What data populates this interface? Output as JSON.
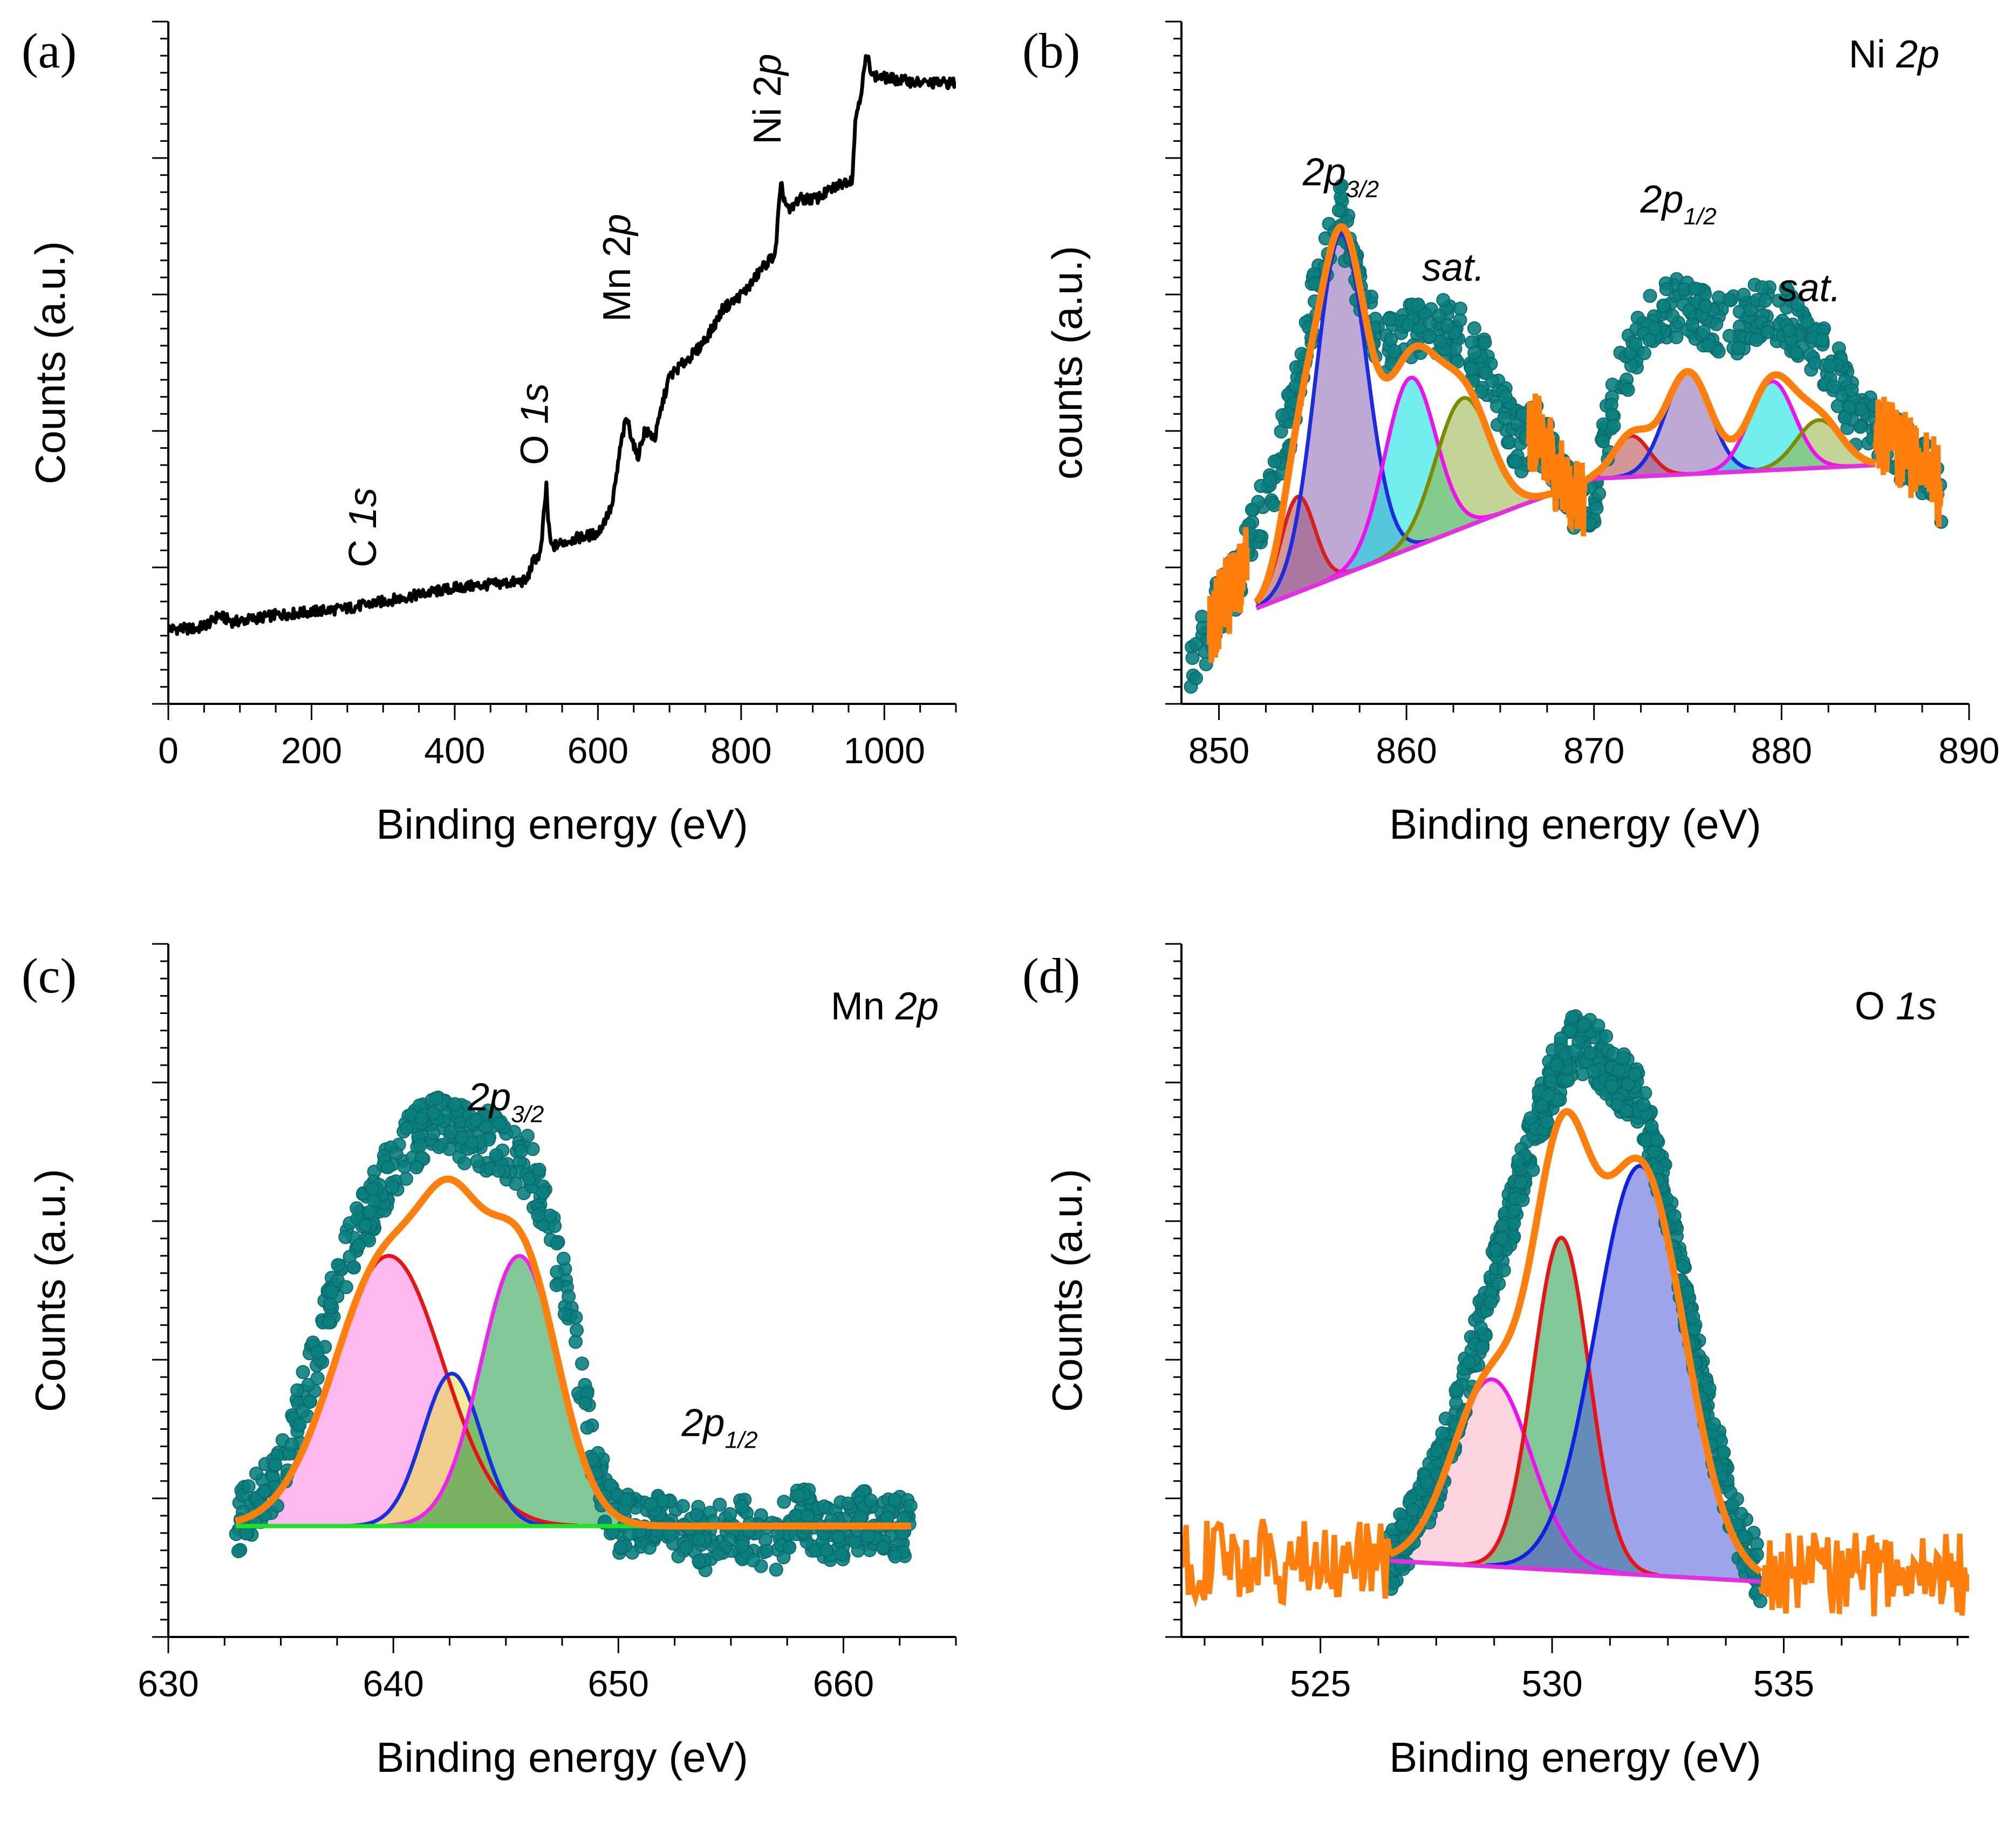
{
  "chart_data": [
    {
      "panel": "(a)",
      "type": "line",
      "title": "",
      "xlabel": "Binding energy (eV)",
      "ylabel": "Counts (a.u.)",
      "xlim": [
        0,
        1100
      ],
      "ylim": [
        0,
        100
      ],
      "xticks": [
        0,
        200,
        400,
        600,
        800,
        1000
      ],
      "xtick_labels": [
        "0",
        "200",
        "400",
        "600",
        "800",
        "1000"
      ],
      "annotations": [
        {
          "main": "C ",
          "italic": "1s",
          "x": 290,
          "y": 20,
          "rotate": true
        },
        {
          "main": "O ",
          "italic": "1s",
          "x": 530,
          "y": 35,
          "rotate": true
        },
        {
          "main": "Mn 2",
          "italic": "p",
          "x": 645,
          "y": 56,
          "rotate": true
        },
        {
          "main": "Ni 2",
          "italic": "p",
          "x": 855,
          "y": 82,
          "rotate": true
        }
      ],
      "series": [
        {
          "name": "survey",
          "color": "#000000",
          "x": [
            0,
            40,
            60,
            70,
            90,
            150,
            250,
            300,
            400,
            500,
            510,
            520,
            528,
            531,
            535,
            560,
            600,
            620,
            632,
            640,
            645,
            655,
            665,
            680,
            690,
            700,
            720,
            740,
            760,
            775,
            790,
            810,
            830,
            848,
            852,
            856,
            860,
            868,
            880,
            905,
            935,
            955,
            960,
            968,
            975,
            985,
            1050,
            1100
          ],
          "values": [
            11,
            11,
            12,
            13,
            12,
            13,
            14,
            15,
            17,
            18,
            21,
            22,
            32,
            26,
            23,
            24,
            25,
            29,
            38,
            42,
            40,
            36,
            40,
            39,
            44,
            48,
            50,
            52,
            55,
            58,
            59,
            61,
            64,
            66,
            72,
            76,
            74,
            72,
            74,
            74,
            76,
            77,
            86,
            90,
            95,
            92,
            91,
            91
          ]
        }
      ]
    },
    {
      "panel": "(b)",
      "tag": {
        "main": "Ni ",
        "italic": "2p"
      },
      "type": "line",
      "title": "",
      "xlabel": "Binding energy (eV)",
      "ylabel": "counts (a.u.)",
      "xlim": [
        848,
        890
      ],
      "ylim": [
        0,
        100
      ],
      "xticks": [
        850,
        860,
        870,
        880,
        890
      ],
      "xtick_labels": [
        "850",
        "860",
        "870",
        "880",
        "890"
      ],
      "annotations": [
        {
          "main": "2p",
          "sub": "3/2",
          "x": 856.5,
          "y": 76
        },
        {
          "main": "2p",
          "sub": "1/2",
          "x": 874.5,
          "y": 72
        },
        {
          "main": "sat.",
          "x": 862.5,
          "y": 62
        },
        {
          "main": "sat.",
          "x": 881.5,
          "y": 59
        }
      ],
      "baseline": {
        "x": [
          852,
          866,
          870,
          885
        ],
        "values": [
          14,
          29,
          33,
          35
        ]
      },
      "components": [
        {
          "name": "p1",
          "center": 854.2,
          "sigma": 0.9,
          "amplitude": 14,
          "color": "#d81d1d",
          "fill": "#b04040"
        },
        {
          "name": "p2",
          "center": 856.5,
          "sigma": 1.35,
          "amplitude": 50,
          "color": "#1a2be0",
          "fill": "#8860b0"
        },
        {
          "name": "p3",
          "center": 860.2,
          "sigma": 1.35,
          "amplitude": 25,
          "color": "#ee11ee",
          "fill": "#00e0e0"
        },
        {
          "name": "p4",
          "center": 863.0,
          "sigma": 1.45,
          "amplitude": 19,
          "color": "#7e8a00",
          "fill": "#90b040"
        },
        {
          "name": "p5",
          "center": 872.0,
          "sigma": 0.95,
          "amplitude": 6,
          "color": "#d81d1d",
          "fill": "#b04040"
        },
        {
          "name": "p6",
          "center": 875.0,
          "sigma": 1.2,
          "amplitude": 15,
          "color": "#1a2be0",
          "fill": "#8860b0"
        },
        {
          "name": "p7",
          "center": 879.5,
          "sigma": 1.2,
          "amplitude": 13,
          "color": "#ee11ee",
          "fill": "#00e0e0"
        },
        {
          "name": "p8",
          "center": 882.0,
          "sigma": 1.2,
          "amplitude": 7,
          "color": "#7e8a00",
          "fill": "#90b040"
        }
      ],
      "envelope": {
        "name": "fit",
        "color": "#ff7f0e"
      },
      "data": {
        "name": "experimental",
        "color": "#0b8080",
        "x": [
          848.5,
          849,
          850,
          851,
          852,
          853,
          854,
          855,
          856,
          856.5,
          857,
          858,
          859,
          860,
          861,
          862,
          863,
          864,
          865,
          866,
          867,
          868,
          869,
          870,
          871,
          872,
          873,
          874,
          875,
          876,
          877,
          878,
          879,
          880,
          881,
          882,
          883,
          884,
          885,
          886,
          887,
          888,
          888.7
        ],
        "values": [
          4,
          8,
          14,
          18,
          26,
          34,
          44,
          58,
          70,
          72,
          66,
          56,
          52,
          54,
          56,
          55,
          54,
          50,
          44,
          38,
          40,
          34,
          30,
          30,
          44,
          52,
          56,
          58,
          58,
          56,
          55,
          56,
          58,
          57,
          55,
          52,
          48,
          42,
          40,
          38,
          36,
          34,
          30
        ]
      },
      "noise_edges": {
        "x": [
          849.5,
          851.5,
          866.5,
          869.5,
          885,
          888.5
        ]
      }
    },
    {
      "panel": "(c)",
      "tag": {
        "main": "Mn ",
        "italic": "2p"
      },
      "type": "line",
      "title": "",
      "xlabel": "Binding energy (eV)",
      "ylabel": "Counts (a.u.)",
      "xlim": [
        630,
        665
      ],
      "ylim": [
        0,
        100
      ],
      "xticks": [
        630,
        640,
        650,
        660
      ],
      "xtick_labels": [
        "630",
        "640",
        "650",
        "660"
      ],
      "annotations": [
        {
          "main": "2p",
          "sub": "3/2",
          "x": 645.0,
          "y": 76
        },
        {
          "main": "2p",
          "sub": "1/2",
          "x": 654.5,
          "y": 29
        }
      ],
      "baseline": {
        "x": [
          633,
          663
        ],
        "values": [
          16,
          16
        ]
      },
      "components": [
        {
          "name": "p1",
          "center": 639.8,
          "sigma": 2.4,
          "amplitude": 39,
          "color": "#e61414",
          "fill": "#ff80e0"
        },
        {
          "name": "p2",
          "center": 642.6,
          "sigma": 1.3,
          "amplitude": 22,
          "color": "#1430e0",
          "fill": "#e6e040"
        },
        {
          "name": "p3",
          "center": 645.6,
          "sigma": 1.7,
          "amplitude": 39,
          "color": "#f020f0",
          "fill": "#1a9a40"
        }
      ],
      "envelope": {
        "name": "fit",
        "color": "#ff7f0e"
      },
      "data": {
        "name": "experimental",
        "color": "#0b8080",
        "x": [
          633,
          634,
          635,
          636,
          637,
          638,
          639,
          640,
          641,
          642,
          643,
          644,
          645,
          646,
          647,
          648,
          649,
          650,
          651,
          652,
          653,
          654,
          655,
          656,
          657,
          658,
          659,
          660,
          661,
          662,
          663
        ],
        "values": [
          16,
          20,
          24,
          34,
          45,
          55,
          62,
          68,
          72,
          74,
          73,
          72,
          70,
          68,
          58,
          44,
          24,
          16,
          17,
          16,
          15,
          14,
          16,
          15,
          14,
          18,
          16,
          15,
          17,
          16,
          16
        ]
      }
    },
    {
      "panel": "(d)",
      "tag": {
        "main": "O ",
        "italic": "1s"
      },
      "type": "line",
      "title": "",
      "xlabel": "Binding energy (eV)",
      "ylabel": "Counts (a.u.)",
      "xlim": [
        522,
        539
      ],
      "ylim": [
        0,
        100
      ],
      "xticks": [
        525,
        530,
        535
      ],
      "xtick_labels": [
        "525",
        "530",
        "535"
      ],
      "annotations": [],
      "baseline": {
        "x": [
          526.5,
          534.5
        ],
        "values": [
          11,
          8
        ]
      },
      "components": [
        {
          "name": "p1",
          "center": 528.7,
          "sigma": 0.85,
          "amplitude": 27,
          "color": "#ee11ee",
          "fill": "#ffb0c8"
        },
        {
          "name": "p2",
          "center": 530.2,
          "sigma": 0.6,
          "amplitude": 48,
          "color": "#e81414",
          "fill": "#1a9a40"
        },
        {
          "name": "p3",
          "center": 531.9,
          "sigma": 0.95,
          "amplitude": 59,
          "color": "#1020e0",
          "fill": "#4c5ad8"
        }
      ],
      "envelope": {
        "name": "fit",
        "color": "#ff7f0e"
      },
      "data": {
        "name": "experimental",
        "color": "#0b8080",
        "x": [
          526.5,
          527,
          527.5,
          528,
          528.5,
          529,
          529.5,
          530,
          530.5,
          531,
          531.5,
          532,
          532.5,
          533,
          533.5,
          534,
          534.5
        ],
        "values": [
          11,
          16,
          23,
          33,
          46,
          58,
          70,
          80,
          86,
          84,
          80,
          76,
          62,
          44,
          28,
          16,
          9
        ]
      },
      "noise_edges": {
        "x": [
          522,
          526.5,
          534.5,
          539
        ]
      }
    }
  ]
}
